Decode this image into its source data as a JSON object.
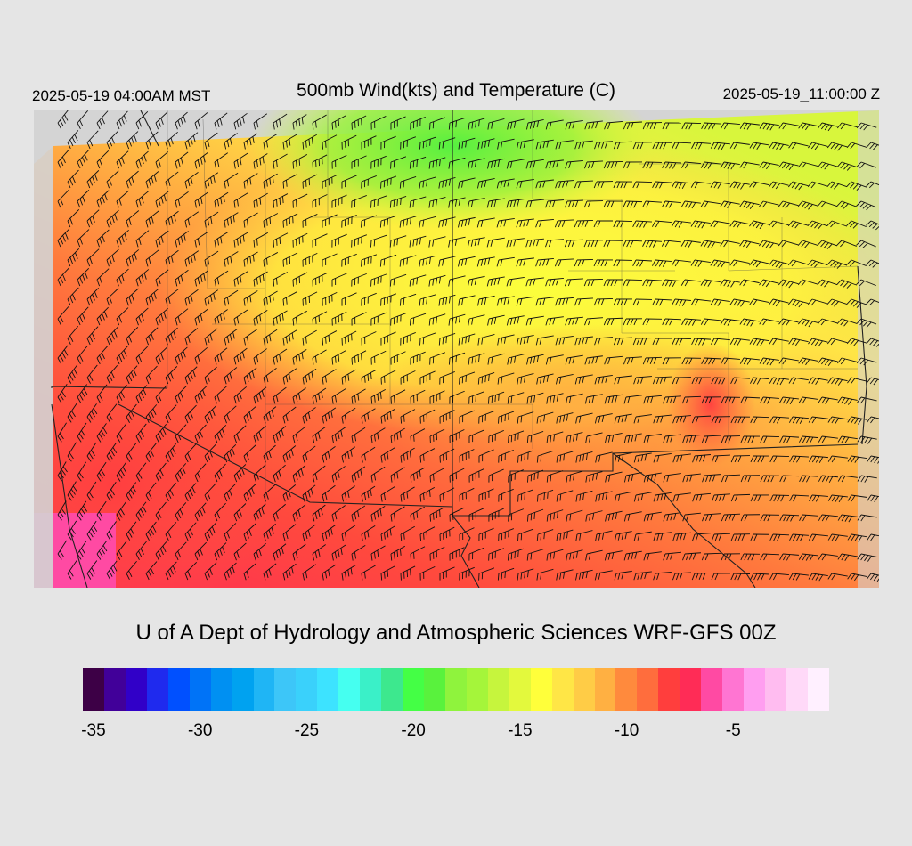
{
  "header": {
    "left_time": "2025-05-19 04:00AM MST",
    "title": "500mb Wind(kts) and Temperature (C)",
    "right_time": "2025-05-19_11:00:00 Z"
  },
  "credit": "U of A Dept of Hydrology and Atmospheric Sciences WRF-GFS 00Z",
  "colorbar": {
    "colors": [
      "#3d0046",
      "#410099",
      "#3100c8",
      "#1f2aee",
      "#0050ff",
      "#0073f7",
      "#0090f2",
      "#00a2f0",
      "#1fb5f5",
      "#3dc6f8",
      "#3ad1fb",
      "#3de3ff",
      "#45fff0",
      "#3af0c8",
      "#3de88e",
      "#44ff45",
      "#59f23d",
      "#8ff33d",
      "#a5f53a",
      "#c6f53d",
      "#e3f93d",
      "#ffff3a",
      "#ffe646",
      "#ffcc46",
      "#ffb042",
      "#ff8a3d",
      "#ff6d3d",
      "#ff3e3d",
      "#ff2c56",
      "#ff4aa3",
      "#ff75d2",
      "#ff9ef0",
      "#ffbcf0",
      "#ffd9f8",
      "#fff0ff"
    ],
    "labels": [
      "-35",
      "-30",
      "-25",
      "-20",
      "-15",
      "-10",
      "-5"
    ]
  }
}
